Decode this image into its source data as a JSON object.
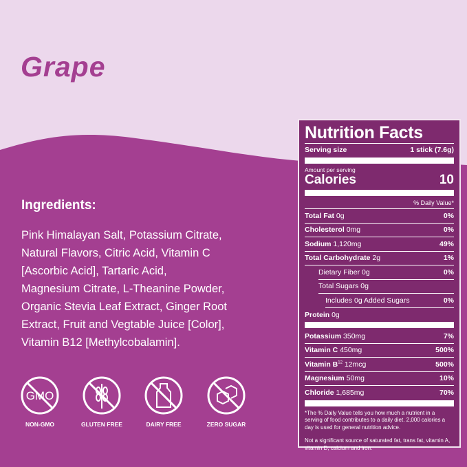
{
  "title": "Grape",
  "colors": {
    "background_light": "#ecd8ec",
    "purple": "#a43f91",
    "label_panel": "#7e2a6e"
  },
  "ingredients": {
    "heading": "Ingredients:",
    "lines": [
      "Pink Himalayan Salt, Potassium Citrate,",
      "Natural Flavors, Citric Acid, Vitamin C",
      "[Ascorbic Acid], Tartaric Acid,",
      "Magnesium Citrate, L-Theanine Powder,",
      "Organic Stevia Leaf Extract, Ginger Root",
      "Extract, Fruit and Vegtable Juice [Color],",
      "Vitamin B12 [Methylcobalamin]."
    ]
  },
  "badges": [
    {
      "icon": "no-gmo-icon",
      "label": "NON-GMO",
      "glyph": "GMO"
    },
    {
      "icon": "gluten-free-icon",
      "label": "GLUTEN FREE"
    },
    {
      "icon": "dairy-free-icon",
      "label": "DAIRY FREE"
    },
    {
      "icon": "zero-sugar-icon",
      "label": "ZERO SUGAR"
    }
  ],
  "nutrition": {
    "title": "Nutrition Facts",
    "serving_label": "Serving size",
    "serving_value": "1 stick (7.6g)",
    "amount_label": "Amount per serving",
    "calories_label": "Calories",
    "calories_value": "10",
    "dv_header": "% Daily Value*",
    "rows": [
      {
        "name": "Total Fat",
        "amount": "0g",
        "dv": "0%"
      },
      {
        "name": "Cholesterol",
        "amount": "0mg",
        "dv": "0%"
      },
      {
        "name": "Sodium",
        "amount": "1,120mg",
        "dv": "49%"
      },
      {
        "name": "Total Carbohydrate",
        "amount": "2g",
        "dv": "1%"
      },
      {
        "name": "Dietary Fiber 0g",
        "dv": "0%"
      },
      {
        "name": "Total Sugars 0g",
        "dv": ""
      },
      {
        "name": "Includes 0g Added Sugars",
        "dv": "0%"
      },
      {
        "name": "Protein",
        "amount": "0g",
        "dv": ""
      }
    ],
    "minerals": [
      {
        "name": "Potassium",
        "amount": "350mg",
        "dv": "7%"
      },
      {
        "name": "Vitamin C",
        "amount": "450mg",
        "dv": "500%"
      },
      {
        "name": "Vitamin B",
        "sup": "12",
        "amount": "12mcg",
        "dv": "500%"
      },
      {
        "name": "Magnesium",
        "amount": "50mg",
        "dv": "10%"
      },
      {
        "name": "Chloride",
        "amount": "1,685mg",
        "dv": "70%"
      }
    ],
    "footnote": "*The % Daily Value tells you how much a nutrient in a serving of food contributes to a daily diet. 2,000 calories a day is used for general nutrition advice.",
    "note": "Not a significant source of saturated fat, trans fat, vitamin A, vitamin D, calcium and iron."
  }
}
